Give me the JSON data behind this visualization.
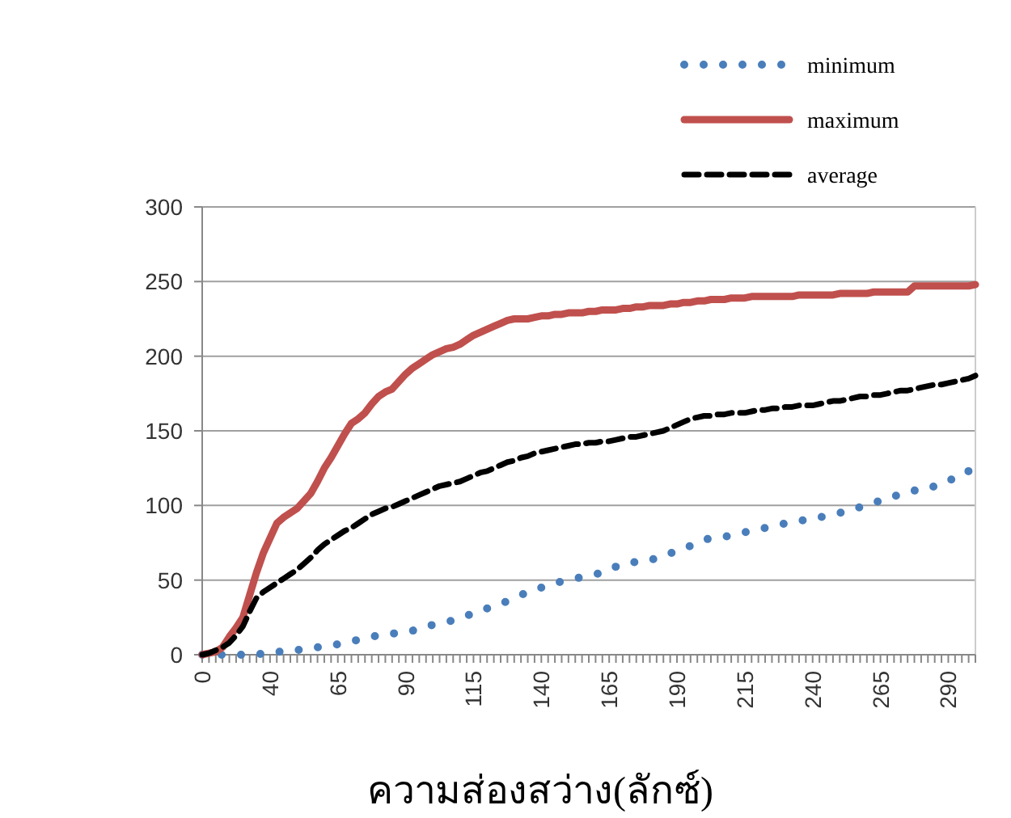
{
  "chart_data": {
    "type": "line",
    "xlabel": "ความส่องสว่าง(ลักซ์)",
    "categories": [
      "0",
      null,
      null,
      null,
      null,
      null,
      null,
      null,
      null,
      null,
      "40",
      null,
      null,
      null,
      null,
      null,
      null,
      null,
      null,
      null,
      "65",
      null,
      null,
      null,
      null,
      null,
      null,
      null,
      null,
      null,
      "90",
      null,
      null,
      null,
      null,
      null,
      null,
      null,
      null,
      null,
      "115",
      null,
      null,
      null,
      null,
      null,
      null,
      null,
      null,
      null,
      "140",
      null,
      null,
      null,
      null,
      null,
      null,
      null,
      null,
      null,
      "165",
      null,
      null,
      null,
      null,
      null,
      null,
      null,
      null,
      null,
      "190",
      null,
      null,
      null,
      null,
      null,
      null,
      null,
      null,
      null,
      "215",
      null,
      null,
      null,
      null,
      null,
      null,
      null,
      null,
      null,
      "240",
      null,
      null,
      null,
      null,
      null,
      null,
      null,
      null,
      null,
      "265",
      null,
      null,
      null,
      null,
      null,
      null,
      null,
      null,
      null,
      "290",
      null,
      null,
      null,
      null
    ],
    "series": [
      {
        "name": "minimum",
        "color": "#4a7ebb",
        "line_style": "dotted",
        "values": [
          0,
          0,
          0,
          0,
          0,
          0,
          0,
          0,
          0,
          1,
          1,
          2,
          2,
          3,
          3,
          4,
          4,
          5,
          5,
          6,
          7,
          8,
          9,
          10,
          11,
          12,
          13,
          14,
          14,
          15,
          15,
          16,
          18,
          19,
          20,
          21,
          22,
          23,
          25,
          26,
          28,
          29,
          31,
          33,
          34,
          36,
          38,
          40,
          42,
          43,
          45,
          46,
          48,
          49,
          50,
          51,
          52,
          53,
          54,
          55,
          57,
          59,
          61,
          62,
          62,
          62,
          63,
          65,
          66,
          68,
          69,
          71,
          73,
          75,
          77,
          78,
          78,
          79,
          80,
          81,
          82,
          83,
          84,
          85,
          86,
          87,
          88,
          89,
          90,
          90,
          91,
          92,
          93,
          94,
          95,
          96,
          97,
          99,
          101,
          102,
          103,
          105,
          106,
          108,
          109,
          110,
          110,
          111,
          113,
          114,
          116,
          119,
          122,
          123,
          125
        ]
      },
      {
        "name": "maximum",
        "color": "#c0504d",
        "line_style": "solid",
        "values": [
          0,
          1,
          2,
          5,
          12,
          18,
          25,
          40,
          55,
          68,
          78,
          88,
          92,
          95,
          98,
          103,
          108,
          116,
          125,
          132,
          140,
          148,
          155,
          158,
          162,
          168,
          173,
          176,
          178,
          183,
          188,
          192,
          195,
          198,
          201,
          203,
          205,
          206,
          208,
          211,
          214,
          216,
          218,
          220,
          222,
          224,
          225,
          225,
          225,
          226,
          227,
          227,
          228,
          228,
          229,
          229,
          229,
          230,
          230,
          231,
          231,
          231,
          232,
          232,
          233,
          233,
          234,
          234,
          234,
          235,
          235,
          236,
          236,
          237,
          237,
          238,
          238,
          238,
          239,
          239,
          239,
          240,
          240,
          240,
          240,
          240,
          240,
          240,
          241,
          241,
          241,
          241,
          241,
          241,
          242,
          242,
          242,
          242,
          242,
          243,
          243,
          243,
          243,
          243,
          243,
          247,
          247,
          247,
          247,
          247,
          247,
          247,
          247,
          247,
          248
        ]
      },
      {
        "name": "average",
        "color": "#000000",
        "line_style": "dashed",
        "values": [
          0,
          1,
          3,
          5,
          8,
          13,
          19,
          29,
          38,
          42,
          45,
          48,
          51,
          54,
          57,
          61,
          65,
          70,
          74,
          77,
          80,
          83,
          85,
          88,
          91,
          94,
          96,
          98,
          99,
          101,
          103,
          105,
          107,
          109,
          111,
          113,
          114,
          115,
          116,
          118,
          120,
          122,
          123,
          125,
          127,
          129,
          130,
          132,
          133,
          135,
          136,
          137,
          138,
          139,
          140,
          141,
          141,
          142,
          142,
          143,
          143,
          144,
          145,
          146,
          146,
          147,
          148,
          149,
          150,
          152,
          154,
          156,
          158,
          159,
          160,
          160,
          161,
          161,
          162,
          162,
          162,
          163,
          164,
          164,
          165,
          165,
          166,
          166,
          167,
          167,
          167,
          168,
          169,
          170,
          170,
          171,
          172,
          173,
          173,
          174,
          174,
          175,
          176,
          177,
          177,
          178,
          179,
          180,
          181,
          181,
          182,
          183,
          184,
          185,
          187
        ]
      }
    ],
    "ylim": [
      0,
      300
    ],
    "yticks": [
      0,
      50,
      100,
      150,
      200,
      250,
      300
    ],
    "grid": "y",
    "legend": "top right"
  }
}
